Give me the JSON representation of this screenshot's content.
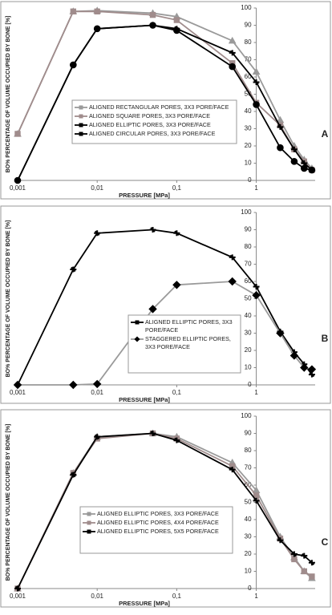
{
  "chart_data": [
    {
      "type": "line",
      "label": "A",
      "x_label": "PRESSURE [MPa]",
      "y_label": "BO% PERCENTAGE OF VOLUME OCCUPIED BY BONE [%]",
      "log_x": true,
      "xlim": [
        0.001,
        5.5
      ],
      "ylim": [
        0,
        100
      ],
      "xticks": [
        {
          "value": 0.001,
          "label": "0,001"
        },
        {
          "value": 0.01,
          "label": "0,01"
        },
        {
          "value": 0.1,
          "label": "0,1"
        },
        1
      ],
      "yticks": [
        0,
        10,
        20,
        30,
        40,
        50,
        60,
        70,
        80,
        90,
        100
      ],
      "x": [
        0.001,
        0.005,
        0.01,
        0.05,
        0.1,
        0.5,
        1,
        2,
        3,
        4,
        5
      ],
      "series": [
        {
          "name": "ALIGNED RECTANGULAR PORES, 3X3 PORE/FACE",
          "color": "#9a9a9a",
          "marker": "triangle",
          "values": [
            27,
            98,
            98.5,
            97,
            95,
            81,
            63,
            35,
            20,
            12,
            7
          ]
        },
        {
          "name": "ALIGNED SQUARE PORES, 3X3 PORE/FACE",
          "color": "#a08c8c",
          "marker": "square",
          "values": [
            27,
            98,
            98,
            96,
            93,
            68,
            45,
            32,
            18,
            11,
            6
          ]
        },
        {
          "name": "ALIGNED ELLIPTIC PORES, 3X3 PORE/FACE",
          "color": "#000000",
          "marker": "cross",
          "values": [
            0,
            67,
            88,
            90,
            88,
            74,
            57,
            31,
            18,
            10,
            6
          ]
        },
        {
          "name": "ALIGNED CIRCULAR PORES, 3X3 PORE/FACE",
          "color": "#000000",
          "marker": "circle",
          "values": [
            0,
            67,
            88,
            90,
            87,
            66,
            44,
            19,
            11,
            7,
            6
          ]
        }
      ]
    },
    {
      "type": "line",
      "label": "B",
      "x_label": "PRESSURE [MPa]",
      "y_label": "BO% PERCENTAGE OF VOLUME OCCUPIED BY BONE [%]",
      "log_x": true,
      "xlim": [
        0.001,
        5.5
      ],
      "ylim": [
        0,
        100
      ],
      "xticks": [
        {
          "value": 0.001,
          "label": "0,001"
        },
        {
          "value": 0.01,
          "label": "0,01"
        },
        {
          "value": 0.1,
          "label": "0,1"
        },
        1
      ],
      "yticks": [
        0,
        10,
        20,
        30,
        40,
        50,
        60,
        70,
        80,
        90,
        100
      ],
      "x": [
        0.001,
        0.005,
        0.01,
        0.05,
        0.1,
        0.5,
        1,
        2,
        3,
        4,
        5
      ],
      "series": [
        {
          "name": "ALIGNED ELLIPTIC PORES, 3X3 PORE/FACE",
          "color": "#000000",
          "marker": "cross",
          "values": [
            0,
            67,
            88,
            90,
            88,
            74,
            57,
            31,
            19,
            12,
            6
          ]
        },
        {
          "name": "STAGGERED ELLIPTIC PORES, 3X3 PORE/FACE",
          "color": "#9a9a9a",
          "marker": "diamond",
          "marker_color": "#000000",
          "values": [
            0,
            0,
            0.5,
            44,
            58,
            60,
            52,
            30,
            17,
            10,
            9
          ]
        }
      ]
    },
    {
      "type": "line",
      "label": "C",
      "x_label": "PRESSURE [MPa]",
      "y_label": "BO% PERCENTAGE OF VOLUME OCCUPIED BY BONE [%]",
      "log_x": true,
      "xlim": [
        0.001,
        5.5
      ],
      "ylim": [
        0,
        100
      ],
      "xticks": [
        {
          "value": 0.001,
          "label": "0,001"
        },
        {
          "value": 0.01,
          "label": "0,01"
        },
        {
          "value": 0.1,
          "label": "0,1"
        },
        1
      ],
      "yticks": [
        0,
        10,
        20,
        30,
        40,
        50,
        60,
        70,
        80,
        90,
        100
      ],
      "x": [
        0.001,
        0.005,
        0.01,
        0.05,
        0.1,
        0.5,
        1,
        2,
        3,
        4,
        5
      ],
      "series": [
        {
          "name": "ALIGNED ELLIPTIC PORES, 3X3 PORE/FACE",
          "color": "#9a9a9a",
          "marker": "triangle",
          "values": [
            0,
            67,
            88,
            90,
            88,
            73,
            57,
            30,
            18,
            10,
            6
          ]
        },
        {
          "name": "ALIGNED ELLIPTIC PORES, 4X4 PORE/FACE",
          "color": "#a08c8c",
          "marker": "square",
          "values": [
            0,
            67,
            87,
            90,
            87,
            71,
            54,
            29,
            17,
            10,
            7
          ]
        },
        {
          "name": "ALIGNED ELLIPTIC PORES, 5X5 PORE/FACE",
          "color": "#000000",
          "marker": "cross",
          "values": [
            0,
            66,
            88,
            90,
            86,
            69,
            51,
            28,
            20,
            19,
            15
          ]
        }
      ]
    }
  ]
}
